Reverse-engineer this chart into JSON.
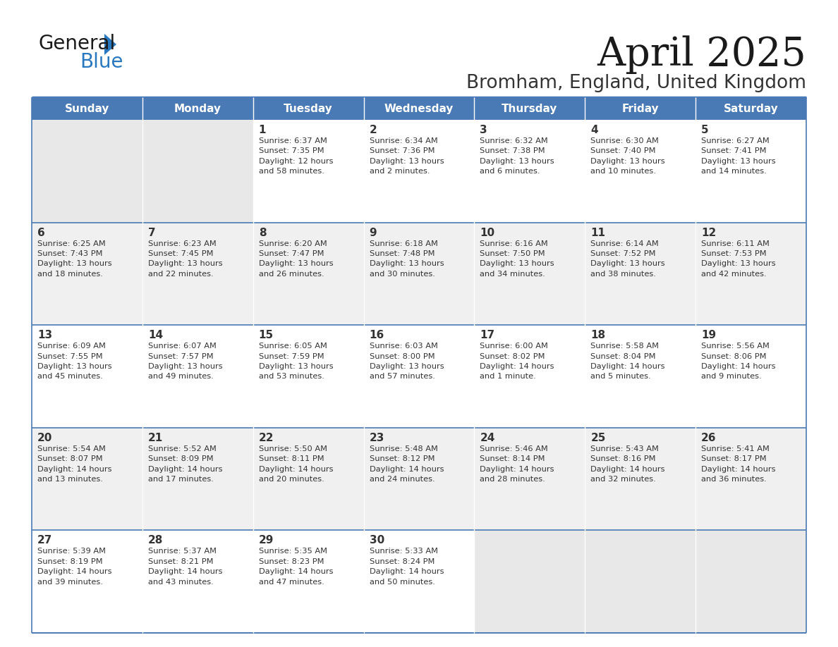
{
  "title": "April 2025",
  "subtitle": "Bromham, England, United Kingdom",
  "header_bg_color": "#4a7ab5",
  "header_text_color": "#ffffff",
  "cell_bg_white": "#ffffff",
  "cell_bg_gray": "#f0f0f0",
  "cell_bg_empty": "#e8e8e8",
  "border_color": "#4a7ab5",
  "row_separator_color": "#4a7ab5",
  "day_text_color": "#333333",
  "info_text_color": "#333333",
  "title_color": "#1a1a1a",
  "subtitle_color": "#333333",
  "logo_color1": "#1a1a1a",
  "logo_color2": "#2878c0",
  "logo_triangle_color": "#2878c0",
  "days_of_week": [
    "Sunday",
    "Monday",
    "Tuesday",
    "Wednesday",
    "Thursday",
    "Friday",
    "Saturday"
  ],
  "weeks": [
    [
      {
        "day": "",
        "info": ""
      },
      {
        "day": "",
        "info": ""
      },
      {
        "day": "1",
        "info": "Sunrise: 6:37 AM\nSunset: 7:35 PM\nDaylight: 12 hours\nand 58 minutes."
      },
      {
        "day": "2",
        "info": "Sunrise: 6:34 AM\nSunset: 7:36 PM\nDaylight: 13 hours\nand 2 minutes."
      },
      {
        "day": "3",
        "info": "Sunrise: 6:32 AM\nSunset: 7:38 PM\nDaylight: 13 hours\nand 6 minutes."
      },
      {
        "day": "4",
        "info": "Sunrise: 6:30 AM\nSunset: 7:40 PM\nDaylight: 13 hours\nand 10 minutes."
      },
      {
        "day": "5",
        "info": "Sunrise: 6:27 AM\nSunset: 7:41 PM\nDaylight: 13 hours\nand 14 minutes."
      }
    ],
    [
      {
        "day": "6",
        "info": "Sunrise: 6:25 AM\nSunset: 7:43 PM\nDaylight: 13 hours\nand 18 minutes."
      },
      {
        "day": "7",
        "info": "Sunrise: 6:23 AM\nSunset: 7:45 PM\nDaylight: 13 hours\nand 22 minutes."
      },
      {
        "day": "8",
        "info": "Sunrise: 6:20 AM\nSunset: 7:47 PM\nDaylight: 13 hours\nand 26 minutes."
      },
      {
        "day": "9",
        "info": "Sunrise: 6:18 AM\nSunset: 7:48 PM\nDaylight: 13 hours\nand 30 minutes."
      },
      {
        "day": "10",
        "info": "Sunrise: 6:16 AM\nSunset: 7:50 PM\nDaylight: 13 hours\nand 34 minutes."
      },
      {
        "day": "11",
        "info": "Sunrise: 6:14 AM\nSunset: 7:52 PM\nDaylight: 13 hours\nand 38 minutes."
      },
      {
        "day": "12",
        "info": "Sunrise: 6:11 AM\nSunset: 7:53 PM\nDaylight: 13 hours\nand 42 minutes."
      }
    ],
    [
      {
        "day": "13",
        "info": "Sunrise: 6:09 AM\nSunset: 7:55 PM\nDaylight: 13 hours\nand 45 minutes."
      },
      {
        "day": "14",
        "info": "Sunrise: 6:07 AM\nSunset: 7:57 PM\nDaylight: 13 hours\nand 49 minutes."
      },
      {
        "day": "15",
        "info": "Sunrise: 6:05 AM\nSunset: 7:59 PM\nDaylight: 13 hours\nand 53 minutes."
      },
      {
        "day": "16",
        "info": "Sunrise: 6:03 AM\nSunset: 8:00 PM\nDaylight: 13 hours\nand 57 minutes."
      },
      {
        "day": "17",
        "info": "Sunrise: 6:00 AM\nSunset: 8:02 PM\nDaylight: 14 hours\nand 1 minute."
      },
      {
        "day": "18",
        "info": "Sunrise: 5:58 AM\nSunset: 8:04 PM\nDaylight: 14 hours\nand 5 minutes."
      },
      {
        "day": "19",
        "info": "Sunrise: 5:56 AM\nSunset: 8:06 PM\nDaylight: 14 hours\nand 9 minutes."
      }
    ],
    [
      {
        "day": "20",
        "info": "Sunrise: 5:54 AM\nSunset: 8:07 PM\nDaylight: 14 hours\nand 13 minutes."
      },
      {
        "day": "21",
        "info": "Sunrise: 5:52 AM\nSunset: 8:09 PM\nDaylight: 14 hours\nand 17 minutes."
      },
      {
        "day": "22",
        "info": "Sunrise: 5:50 AM\nSunset: 8:11 PM\nDaylight: 14 hours\nand 20 minutes."
      },
      {
        "day": "23",
        "info": "Sunrise: 5:48 AM\nSunset: 8:12 PM\nDaylight: 14 hours\nand 24 minutes."
      },
      {
        "day": "24",
        "info": "Sunrise: 5:46 AM\nSunset: 8:14 PM\nDaylight: 14 hours\nand 28 minutes."
      },
      {
        "day": "25",
        "info": "Sunrise: 5:43 AM\nSunset: 8:16 PM\nDaylight: 14 hours\nand 32 minutes."
      },
      {
        "day": "26",
        "info": "Sunrise: 5:41 AM\nSunset: 8:17 PM\nDaylight: 14 hours\nand 36 minutes."
      }
    ],
    [
      {
        "day": "27",
        "info": "Sunrise: 5:39 AM\nSunset: 8:19 PM\nDaylight: 14 hours\nand 39 minutes."
      },
      {
        "day": "28",
        "info": "Sunrise: 5:37 AM\nSunset: 8:21 PM\nDaylight: 14 hours\nand 43 minutes."
      },
      {
        "day": "29",
        "info": "Sunrise: 5:35 AM\nSunset: 8:23 PM\nDaylight: 14 hours\nand 47 minutes."
      },
      {
        "day": "30",
        "info": "Sunrise: 5:33 AM\nSunset: 8:24 PM\nDaylight: 14 hours\nand 50 minutes."
      },
      {
        "day": "",
        "info": ""
      },
      {
        "day": "",
        "info": ""
      },
      {
        "day": "",
        "info": ""
      }
    ]
  ]
}
